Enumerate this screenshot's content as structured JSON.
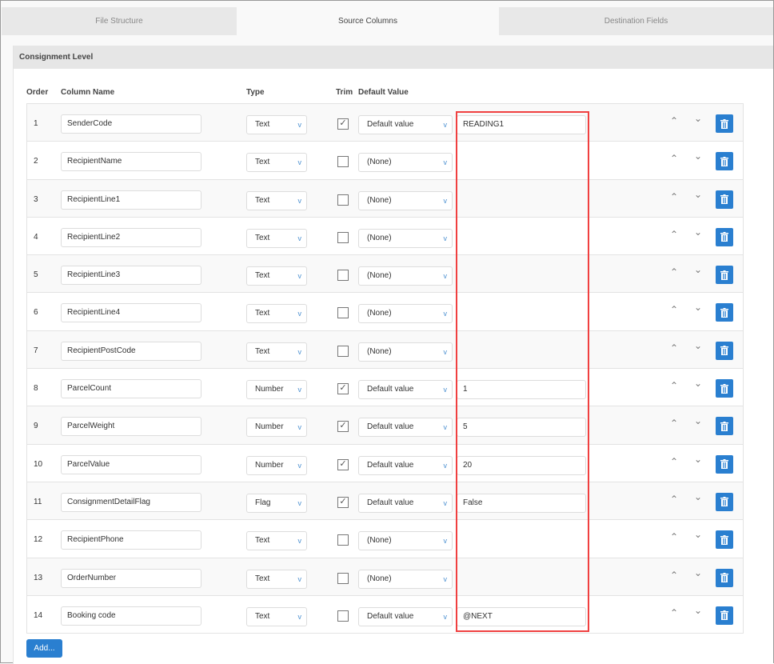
{
  "tabs": [
    {
      "label": "File Structure",
      "active": false
    },
    {
      "label": "Source Columns",
      "active": true
    },
    {
      "label": "Destination Fields",
      "active": false
    }
  ],
  "panel_title": "Consignment Level",
  "headers": {
    "order": "Order",
    "column_name": "Column Name",
    "type": "Type",
    "trim": "Trim",
    "default_value": "Default Value"
  },
  "rows": [
    {
      "order": "1",
      "name": "SenderCode",
      "type": "Text",
      "trim": true,
      "default_mode": "Default value",
      "value": "READING1"
    },
    {
      "order": "2",
      "name": "RecipientName",
      "type": "Text",
      "trim": false,
      "default_mode": "(None)",
      "value": ""
    },
    {
      "order": "3",
      "name": "RecipientLine1",
      "type": "Text",
      "trim": false,
      "default_mode": "(None)",
      "value": ""
    },
    {
      "order": "4",
      "name": "RecipientLine2",
      "type": "Text",
      "trim": false,
      "default_mode": "(None)",
      "value": ""
    },
    {
      "order": "5",
      "name": "RecipientLine3",
      "type": "Text",
      "trim": false,
      "default_mode": "(None)",
      "value": ""
    },
    {
      "order": "6",
      "name": "RecipientLine4",
      "type": "Text",
      "trim": false,
      "default_mode": "(None)",
      "value": ""
    },
    {
      "order": "7",
      "name": "RecipientPostCode",
      "type": "Text",
      "trim": false,
      "default_mode": "(None)",
      "value": ""
    },
    {
      "order": "8",
      "name": "ParcelCount",
      "type": "Number",
      "trim": true,
      "default_mode": "Default value",
      "value": "1"
    },
    {
      "order": "9",
      "name": "ParcelWeight",
      "type": "Number",
      "trim": true,
      "default_mode": "Default value",
      "value": "5"
    },
    {
      "order": "10",
      "name": "ParcelValue",
      "type": "Number",
      "trim": true,
      "default_mode": "Default value",
      "value": "20"
    },
    {
      "order": "11",
      "name": "ConsignmentDetailFlag",
      "type": "Flag",
      "trim": true,
      "default_mode": "Default value",
      "value": "False"
    },
    {
      "order": "12",
      "name": "RecipientPhone",
      "type": "Text",
      "trim": false,
      "default_mode": "(None)",
      "value": ""
    },
    {
      "order": "13",
      "name": "OrderNumber",
      "type": "Text",
      "trim": false,
      "default_mode": "(None)",
      "value": ""
    },
    {
      "order": "14",
      "name": "Booking code",
      "type": "Text",
      "trim": false,
      "default_mode": "Default value",
      "value": "@NEXT"
    }
  ],
  "add_label": "Add...",
  "colors": {
    "accent": "#2a7fd0",
    "highlight": "#f04040"
  }
}
